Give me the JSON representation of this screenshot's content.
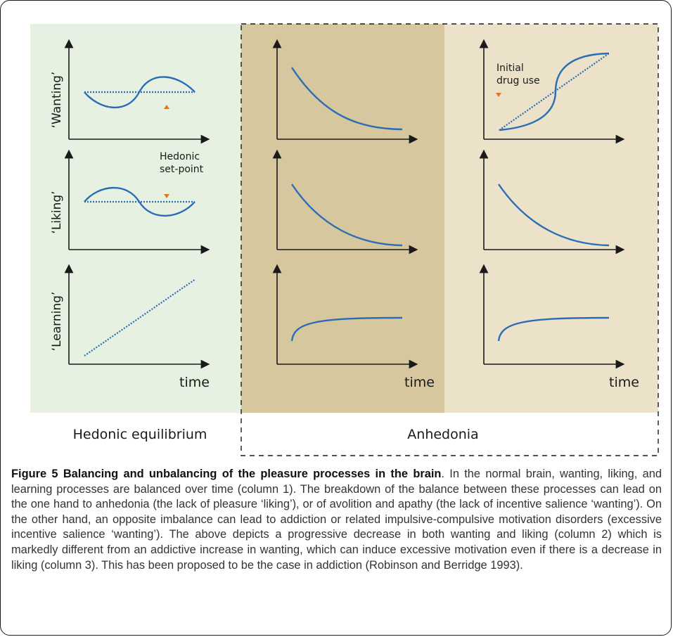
{
  "columns": [
    {
      "title": "Hedonic equilibrium",
      "bg": "#e7f1e1"
    },
    {
      "title": "Anhedonia",
      "bg": "#d7c79f"
    },
    {
      "title": "",
      "bg": "#ebe2c9"
    }
  ],
  "row_labels": [
    "‘Wanting’",
    "‘Liking’",
    "‘Learning’"
  ],
  "time_label": "time",
  "annotations": {
    "hedonic_set_point": [
      "Hedonic",
      "set-point"
    ],
    "initial_drug_use": [
      "Initial",
      "drug use"
    ]
  },
  "colors": {
    "curve": "#2a6db5",
    "marker": "#e0742a",
    "axis": "#1a1a1a",
    "frame_dash": "#1a1a1a"
  },
  "caption": {
    "figure_label": "Figure 5",
    "title": "Balancing and unbalancing of the pleasure processes in the brain",
    "body": ". In the normal brain, wanting, liking, and learning processes are balanced over time (column 1). The breakdown of the balance between these processes can lead on the one hand to anhedonia (the lack of pleasure ‘liking’), or of avolition and apathy (the lack of incentive salience ‘wanting’). On the other hand, an opposite imbalance can lead to addiction or related impulsive-compulsive motivation disorders (excessive incentive salience ‘wanting’). The above depicts a progressive decrease in both wanting and liking (column 2) which is markedly different from an addictive increase in wanting, which can induce excessive motivation even if there is a decrease in liking (column 3). This has been proposed to be the case in addiction (Robinson and Berridge 1993)."
  }
}
